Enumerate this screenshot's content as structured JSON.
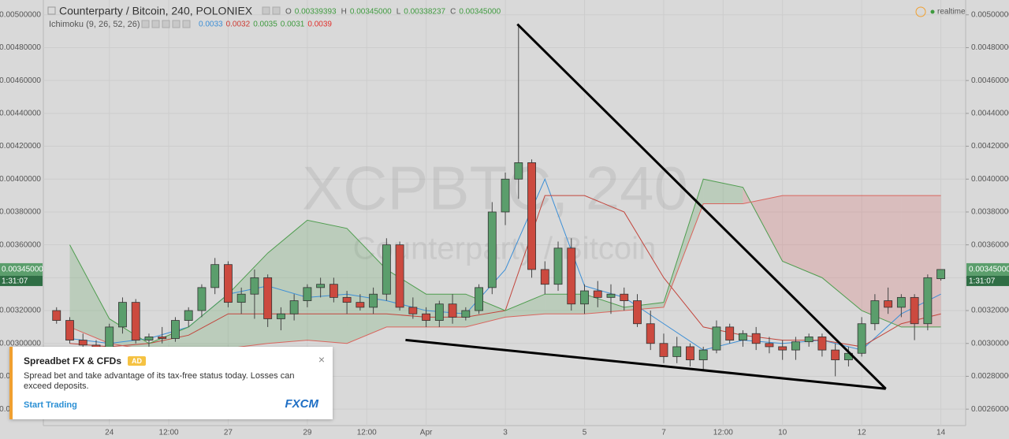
{
  "chart_data": {
    "type": "candlestick",
    "title": "Counterparty / Bitcoin, 240, POLONIEX",
    "status": "realtime",
    "ohlc_header": [
      {
        "label": "O",
        "text": "0.00339393"
      },
      {
        "label": "H",
        "text": "0.00345000"
      },
      {
        "label": "L",
        "text": "0.00338237"
      },
      {
        "label": "C",
        "text": "0.00345000"
      }
    ],
    "watermark": [
      "XCPBTC, 240",
      "Counterparty / Bitcoin"
    ],
    "up_color": "#5b9e6c",
    "down_color": "#cc4a3f",
    "grid": true,
    "xlim": [
      -40,
      519
    ],
    "ylim": [
      0.0025,
      0.00509
    ],
    "xticks": [
      {
        "value": 0,
        "label": "24"
      },
      {
        "value": 36,
        "label": "12:00"
      },
      {
        "value": 72,
        "label": "27"
      },
      {
        "value": 120,
        "label": "29"
      },
      {
        "value": 156,
        "label": "12:00"
      },
      {
        "value": 192,
        "label": "Apr"
      },
      {
        "value": 240,
        "label": "3"
      },
      {
        "value": 288,
        "label": "5"
      },
      {
        "value": 336,
        "label": "7"
      },
      {
        "value": 372,
        "label": "12:00"
      },
      {
        "value": 408,
        "label": "10"
      },
      {
        "value": 456,
        "label": "12"
      },
      {
        "value": 504,
        "label": "14"
      }
    ],
    "yticks": [
      {
        "value": 0.0026,
        "label": "0.00260000"
      },
      {
        "value": 0.0028,
        "label": "0.00280000"
      },
      {
        "value": 0.003,
        "label": "0.00300000"
      },
      {
        "value": 0.0032,
        "label": "0.00320000"
      },
      {
        "value": 0.0034,
        "label": "0.00340000"
      },
      {
        "value": 0.0036,
        "label": "0.00360000"
      },
      {
        "value": 0.0038,
        "label": "0.00380000"
      },
      {
        "value": 0.004,
        "label": "0.00400000"
      },
      {
        "value": 0.0042,
        "label": "0.00420000"
      },
      {
        "value": 0.0044,
        "label": "0.00440000"
      },
      {
        "value": 0.0046,
        "label": "0.00460000"
      },
      {
        "value": 0.0048,
        "label": "0.00480000"
      },
      {
        "value": 0.005,
        "label": "0.00500000"
      }
    ],
    "x": [
      -32,
      -24,
      -16,
      -8,
      0,
      8,
      16,
      24,
      32,
      40,
      48,
      56,
      64,
      72,
      80,
      88,
      96,
      104,
      112,
      120,
      128,
      136,
      144,
      152,
      160,
      168,
      176,
      184,
      192,
      200,
      208,
      216,
      224,
      232,
      240,
      248,
      256,
      264,
      272,
      280,
      288,
      296,
      304,
      312,
      320,
      328,
      336,
      344,
      352,
      360,
      368,
      376,
      384,
      392,
      400,
      408,
      416,
      424,
      432,
      440,
      448,
      456,
      464,
      472,
      480,
      488,
      496,
      504
    ],
    "ohlc": [
      [
        0.0032,
        0.00322,
        0.00312,
        0.00314
      ],
      [
        0.00314,
        0.00316,
        0.003,
        0.00302
      ],
      [
        0.00302,
        0.00306,
        0.00296,
        0.00299
      ],
      [
        0.00299,
        0.00302,
        0.0029,
        0.00297
      ],
      [
        0.00297,
        0.00312,
        0.00295,
        0.0031
      ],
      [
        0.0031,
        0.00328,
        0.00306,
        0.00325
      ],
      [
        0.00325,
        0.00327,
        0.003,
        0.00302
      ],
      [
        0.00302,
        0.00306,
        0.00298,
        0.00304
      ],
      [
        0.00304,
        0.0031,
        0.003,
        0.00303
      ],
      [
        0.00303,
        0.00316,
        0.00301,
        0.00314
      ],
      [
        0.00314,
        0.00322,
        0.0031,
        0.0032
      ],
      [
        0.0032,
        0.00336,
        0.00316,
        0.00334
      ],
      [
        0.00334,
        0.00352,
        0.0033,
        0.00348
      ],
      [
        0.00348,
        0.0035,
        0.00322,
        0.00325
      ],
      [
        0.00325,
        0.00334,
        0.00318,
        0.0033
      ],
      [
        0.0033,
        0.00345,
        0.00315,
        0.0034
      ],
      [
        0.0034,
        0.00342,
        0.0031,
        0.00315
      ],
      [
        0.00315,
        0.00322,
        0.00308,
        0.00318
      ],
      [
        0.00318,
        0.0033,
        0.00314,
        0.00326
      ],
      [
        0.00326,
        0.00336,
        0.00322,
        0.00334
      ],
      [
        0.00334,
        0.0034,
        0.00328,
        0.00336
      ],
      [
        0.00336,
        0.0034,
        0.00325,
        0.00328
      ],
      [
        0.00328,
        0.00332,
        0.00318,
        0.00325
      ],
      [
        0.00325,
        0.0033,
        0.0032,
        0.00322
      ],
      [
        0.00322,
        0.00334,
        0.00318,
        0.0033
      ],
      [
        0.0033,
        0.00364,
        0.00326,
        0.0036
      ],
      [
        0.0036,
        0.00362,
        0.0032,
        0.00322
      ],
      [
        0.00322,
        0.00328,
        0.00315,
        0.00318
      ],
      [
        0.00318,
        0.00322,
        0.0031,
        0.00314
      ],
      [
        0.00314,
        0.00326,
        0.0031,
        0.00324
      ],
      [
        0.00324,
        0.0033,
        0.00312,
        0.00316
      ],
      [
        0.00316,
        0.00322,
        0.00314,
        0.0032
      ],
      [
        0.0032,
        0.00336,
        0.00318,
        0.00334
      ],
      [
        0.00334,
        0.00386,
        0.0033,
        0.0038
      ],
      [
        0.0038,
        0.00404,
        0.00372,
        0.004
      ],
      [
        0.004,
        0.00494,
        0.00388,
        0.0041
      ],
      [
        0.0041,
        0.00412,
        0.0034,
        0.00345
      ],
      [
        0.00345,
        0.0035,
        0.0033,
        0.00336
      ],
      [
        0.00336,
        0.00362,
        0.00332,
        0.00358
      ],
      [
        0.00358,
        0.00364,
        0.0032,
        0.00324
      ],
      [
        0.00324,
        0.00336,
        0.00318,
        0.00332
      ],
      [
        0.00332,
        0.00338,
        0.00322,
        0.00328
      ],
      [
        0.00328,
        0.00336,
        0.00318,
        0.0033
      ],
      [
        0.0033,
        0.00334,
        0.0032,
        0.00326
      ],
      [
        0.00326,
        0.0033,
        0.0031,
        0.00312
      ],
      [
        0.00312,
        0.0032,
        0.00296,
        0.003
      ],
      [
        0.003,
        0.00306,
        0.00288,
        0.00292
      ],
      [
        0.00292,
        0.00304,
        0.00288,
        0.00298
      ],
      [
        0.00298,
        0.003,
        0.00286,
        0.0029
      ],
      [
        0.0029,
        0.00298,
        0.00284,
        0.00296
      ],
      [
        0.00296,
        0.00314,
        0.00294,
        0.0031
      ],
      [
        0.0031,
        0.00312,
        0.003,
        0.00302
      ],
      [
        0.00302,
        0.00308,
        0.00298,
        0.00306
      ],
      [
        0.00306,
        0.0031,
        0.00296,
        0.003
      ],
      [
        0.003,
        0.00304,
        0.00294,
        0.00298
      ],
      [
        0.00298,
        0.00302,
        0.0029,
        0.00296
      ],
      [
        0.00296,
        0.00304,
        0.0029,
        0.00301
      ],
      [
        0.00301,
        0.00306,
        0.00298,
        0.00304
      ],
      [
        0.00304,
        0.00306,
        0.00292,
        0.00296
      ],
      [
        0.00296,
        0.003,
        0.0028,
        0.0029
      ],
      [
        0.0029,
        0.00298,
        0.00286,
        0.00294
      ],
      [
        0.00294,
        0.00316,
        0.00292,
        0.00312
      ],
      [
        0.00312,
        0.0033,
        0.00308,
        0.00326
      ],
      [
        0.00326,
        0.00334,
        0.00318,
        0.00322
      ],
      [
        0.00322,
        0.0033,
        0.00316,
        0.00328
      ],
      [
        0.00328,
        0.0033,
        0.00302,
        0.00312
      ],
      [
        0.00312,
        0.00342,
        0.00308,
        0.0034
      ],
      [
        0.00339393,
        0.00345,
        0.00338237,
        0.00345
      ]
    ],
    "last_price": {
      "value": 0.00345,
      "label": "0.00345000"
    },
    "countdown": "1:31:07",
    "indicator": {
      "label": "Ichimoku (9, 26, 52, 26)",
      "legend_values": [
        {
          "text": "0.0033",
          "color": "#3d8fd6"
        },
        {
          "text": "0.0032",
          "color": "#cc3b33"
        },
        {
          "text": "0.0035",
          "color": "#3f9a3f"
        },
        {
          "text": "0.0031",
          "color": "#3f9a3f"
        },
        {
          "text": "0.0039",
          "color": "#e0322e"
        }
      ],
      "x": [
        -24,
        0,
        24,
        48,
        72,
        96,
        120,
        144,
        168,
        192,
        216,
        240,
        264,
        288,
        312,
        336,
        360,
        384,
        408,
        432,
        456,
        480,
        504
      ],
      "lines": [
        {
          "color": "#3d8fd6",
          "values": [
            0.00303,
            0.003,
            0.00303,
            0.0031,
            0.0033,
            0.00335,
            0.00328,
            0.0033,
            0.00326,
            0.0032,
            0.00318,
            0.00345,
            0.004,
            0.00335,
            0.00328,
            0.00312,
            0.00296,
            0.00302,
            0.003,
            0.00302,
            0.00296,
            0.00318,
            0.0033
          ]
        },
        {
          "color": "#c2453c",
          "values": [
            0.003,
            0.00298,
            0.003,
            0.00305,
            0.00318,
            0.00318,
            0.00318,
            0.00318,
            0.00318,
            0.00316,
            0.00316,
            0.0032,
            0.0039,
            0.0039,
            0.0038,
            0.0034,
            0.0031,
            0.00305,
            0.00302,
            0.00302,
            0.00298,
            0.00312,
            0.00318
          ]
        },
        {
          "color": "#4f9d4f",
          "values": [
            0.0036,
            0.00315,
            0.003,
            0.0031,
            0.0033,
            0.00355,
            0.00375,
            0.0037,
            0.00345,
            0.0033,
            0.0033,
            0.0032,
            0.0033,
            0.0033,
            0.00322,
            0.00325,
            0.004,
            0.00395,
            0.0035,
            0.0034,
            0.0032,
            0.0031,
            0.0031
          ]
        },
        {
          "color": "#d9655e",
          "values": [
            0.0031,
            0.003,
            0.00296,
            0.00296,
            0.00297,
            0.003,
            0.00302,
            0.003,
            0.0031,
            0.0031,
            0.0031,
            0.00316,
            0.00318,
            0.00318,
            0.0032,
            0.00322,
            0.00385,
            0.00385,
            0.0039,
            0.0039,
            0.0039,
            0.0039,
            0.0039
          ]
        }
      ],
      "cloud_colors": [
        "rgba(80,160,80,0.22)",
        "rgba(220,90,90,0.22)"
      ]
    },
    "drawings": [
      {
        "color": "#000000",
        "x": [
          247.3,
          470.6
        ],
        "y": [
          0.004943,
          0.002724
        ]
      },
      {
        "color": "#000000",
        "x": [
          179.5,
          470.6
        ],
        "y": [
          0.003021,
          0.002724
        ]
      }
    ]
  },
  "ad": {
    "title": "Spreadbet FX & CFDs",
    "badge": "AD",
    "text": "Spread bet and take advantage of its tax-free status today. Losses can exceed deposits.",
    "cta": "Start Trading",
    "brand": "FXCM",
    "close": "×"
  }
}
